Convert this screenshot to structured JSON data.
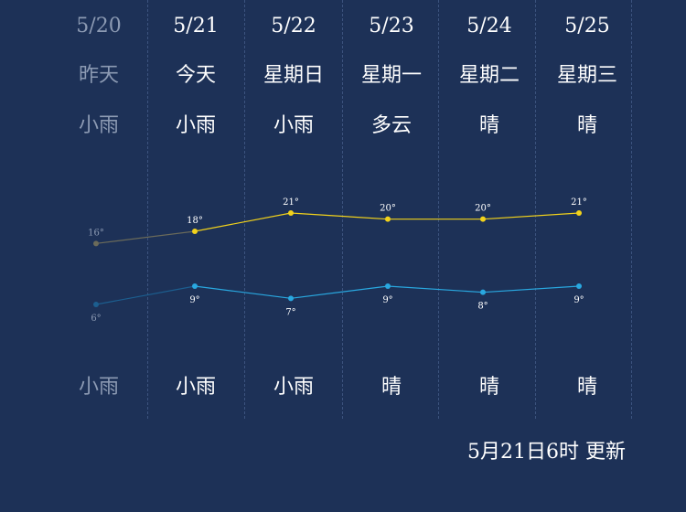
{
  "days": [
    {
      "date": "5/20",
      "weekday": "昨天",
      "day_condition": "小雨",
      "night_condition": "小雨",
      "past": true
    },
    {
      "date": "5/21",
      "weekday": "今天",
      "day_condition": "小雨",
      "night_condition": "小雨",
      "past": false
    },
    {
      "date": "5/22",
      "weekday": "星期日",
      "day_condition": "小雨",
      "night_condition": "小雨",
      "past": false
    },
    {
      "date": "5/23",
      "weekday": "星期一",
      "day_condition": "多云",
      "night_condition": "晴",
      "past": false
    },
    {
      "date": "5/24",
      "weekday": "星期二",
      "day_condition": "晴",
      "night_condition": "晴",
      "past": false
    },
    {
      "date": "5/25",
      "weekday": "星期三",
      "day_condition": "晴",
      "night_condition": "晴",
      "past": false
    }
  ],
  "chart_data": {
    "type": "line",
    "categories": [
      "5/20",
      "5/21",
      "5/22",
      "5/23",
      "5/24",
      "5/25"
    ],
    "series": [
      {
        "values": [
          16,
          18,
          21,
          20,
          20,
          21
        ],
        "labels": [
          "16°",
          "18°",
          "21°",
          "20°",
          "20°",
          "21°"
        ],
        "color": "#f2d21b",
        "past_color": "#6b6b5a"
      },
      {
        "values": [
          6,
          9,
          7,
          9,
          8,
          9
        ],
        "labels": [
          "6°",
          "9°",
          "7°",
          "9°",
          "8°",
          "9°"
        ],
        "color": "#29a8e0",
        "past_color": "#1c5e8f"
      }
    ]
  },
  "update_text": "5月21日6时 更新"
}
